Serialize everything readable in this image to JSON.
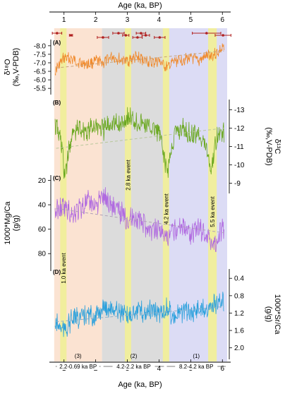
{
  "chart_data": {
    "type": "line",
    "title": "",
    "x_axis": {
      "label_top": "Age (ka, BP)",
      "label_bottom": "Age (ka, BP)",
      "ticks": [
        "1",
        "2",
        "3",
        "4",
        "5",
        "6"
      ],
      "xlim": [
        0.65,
        6.15
      ]
    },
    "panels": [
      {
        "id": "A",
        "label": "(A)",
        "ylabel_top": "δ¹⁸O",
        "ylabel_bottom": "(‰,V-PDB)",
        "ticks": [
          "-8.0",
          "-7.5",
          "-7.0",
          "-6.5",
          "-6.0",
          "-5.5"
        ],
        "ylim": [
          -8.2,
          -5.3
        ],
        "inverted": true,
        "axis_side": "left",
        "color": "#f08a2c",
        "trend_color": "#c8a27a",
        "series": [
          {
            "x": 0.75,
            "y": -6.6
          },
          {
            "x": 1.0,
            "y": -7.3
          },
          {
            "x": 1.25,
            "y": -7.2
          },
          {
            "x": 1.5,
            "y": -7.0
          },
          {
            "x": 1.75,
            "y": -6.9
          },
          {
            "x": 2.0,
            "y": -7.1
          },
          {
            "x": 2.25,
            "y": -7.0
          },
          {
            "x": 2.5,
            "y": -7.4
          },
          {
            "x": 2.75,
            "y": -7.2
          },
          {
            "x": 3.0,
            "y": -7.1
          },
          {
            "x": 3.25,
            "y": -7.3
          },
          {
            "x": 3.5,
            "y": -7.2
          },
          {
            "x": 3.75,
            "y": -7.0
          },
          {
            "x": 4.0,
            "y": -7.1
          },
          {
            "x": 4.25,
            "y": -6.7
          },
          {
            "x": 4.5,
            "y": -7.1
          },
          {
            "x": 4.75,
            "y": -7.2
          },
          {
            "x": 5.0,
            "y": -7.3
          },
          {
            "x": 5.25,
            "y": -7.1
          },
          {
            "x": 5.5,
            "y": -7.4
          },
          {
            "x": 5.75,
            "y": -7.5
          },
          {
            "x": 6.0,
            "y": -7.8
          }
        ],
        "trend": [
          {
            "x": 0.75,
            "y": -6.7
          },
          {
            "x": 6.05,
            "y": -7.7
          }
        ]
      },
      {
        "id": "B",
        "label": "(B)",
        "ylabel_top": "δ¹³C",
        "ylabel_bottom": "(‰,V-PDB)",
        "ticks": [
          "-13",
          "-12",
          "-11",
          "-10",
          "-9"
        ],
        "ylim": [
          -13.4,
          -8.6
        ],
        "inverted": true,
        "axis_side": "right",
        "color": "#6aa820",
        "trend_color": "#b8c79a",
        "series": [
          {
            "x": 0.75,
            "y": -12.1
          },
          {
            "x": 0.95,
            "y": -11.0
          },
          {
            "x": 1.0,
            "y": -9.3
          },
          {
            "x": 1.25,
            "y": -11.6
          },
          {
            "x": 1.5,
            "y": -12.0
          },
          {
            "x": 1.75,
            "y": -11.8
          },
          {
            "x": 2.0,
            "y": -12.2
          },
          {
            "x": 2.25,
            "y": -11.9
          },
          {
            "x": 2.5,
            "y": -12.3
          },
          {
            "x": 2.75,
            "y": -12.1
          },
          {
            "x": 3.0,
            "y": -12.6
          },
          {
            "x": 3.25,
            "y": -12.4
          },
          {
            "x": 3.5,
            "y": -12.2
          },
          {
            "x": 3.75,
            "y": -12.0
          },
          {
            "x": 4.0,
            "y": -11.8
          },
          {
            "x": 4.25,
            "y": -9.6
          },
          {
            "x": 4.5,
            "y": -11.7
          },
          {
            "x": 4.75,
            "y": -12.0
          },
          {
            "x": 5.0,
            "y": -11.6
          },
          {
            "x": 5.25,
            "y": -11.8
          },
          {
            "x": 5.5,
            "y": -10.9
          },
          {
            "x": 5.65,
            "y": -9.7
          },
          {
            "x": 5.8,
            "y": -11.4
          },
          {
            "x": 6.0,
            "y": -11.8
          }
        ],
        "trend": [
          {
            "x": 0.75,
            "y": -10.9
          },
          {
            "x": 6.05,
            "y": -12.0
          }
        ]
      },
      {
        "id": "C",
        "label": "(C)",
        "ylabel_top": "1000*Mg/Ca",
        "ylabel_bottom": "(g/g)",
        "ticks": [
          "20",
          "40",
          "60",
          "80"
        ],
        "ylim": [
          18,
          92
        ],
        "inverted": true,
        "axis_side": "left",
        "color": "#b06ae0",
        "trend_color": "#b0a0b8",
        "series": [
          {
            "x": 0.75,
            "y": 45
          },
          {
            "x": 1.0,
            "y": 42
          },
          {
            "x": 1.25,
            "y": 48
          },
          {
            "x": 1.5,
            "y": 43
          },
          {
            "x": 1.75,
            "y": 38
          },
          {
            "x": 2.0,
            "y": 40
          },
          {
            "x": 2.25,
            "y": 33
          },
          {
            "x": 2.5,
            "y": 40
          },
          {
            "x": 2.75,
            "y": 45
          },
          {
            "x": 3.0,
            "y": 52
          },
          {
            "x": 3.25,
            "y": 50
          },
          {
            "x": 3.5,
            "y": 55
          },
          {
            "x": 3.75,
            "y": 62
          },
          {
            "x": 4.0,
            "y": 58
          },
          {
            "x": 4.25,
            "y": 70
          },
          {
            "x": 4.5,
            "y": 60
          },
          {
            "x": 4.75,
            "y": 56
          },
          {
            "x": 5.0,
            "y": 63
          },
          {
            "x": 5.25,
            "y": 58
          },
          {
            "x": 5.5,
            "y": 65
          },
          {
            "x": 5.75,
            "y": 72
          },
          {
            "x": 6.0,
            "y": 60
          }
        ],
        "trend": [
          {
            "x": 0.75,
            "y": 43
          },
          {
            "x": 6.05,
            "y": 63
          }
        ]
      },
      {
        "id": "D",
        "label": "(D)",
        "ylabel_top": "1000*Sr/Ca",
        "ylabel_bottom": "(g/g)",
        "ticks": [
          "0.4",
          "0.8",
          "1.2",
          "1.6",
          "2.0"
        ],
        "ylim": [
          0.25,
          2.2
        ],
        "inverted": true,
        "axis_side": "right",
        "color": "#2aa0dc",
        "trend_color": "#8fb0c8",
        "series": [
          {
            "x": 0.75,
            "y": 1.45
          },
          {
            "x": 1.0,
            "y": 1.6
          },
          {
            "x": 1.25,
            "y": 1.35
          },
          {
            "x": 1.5,
            "y": 1.3
          },
          {
            "x": 1.75,
            "y": 1.25
          },
          {
            "x": 2.0,
            "y": 1.3
          },
          {
            "x": 2.25,
            "y": 1.05
          },
          {
            "x": 2.5,
            "y": 1.1
          },
          {
            "x": 2.75,
            "y": 1.15
          },
          {
            "x": 3.0,
            "y": 1.3
          },
          {
            "x": 3.25,
            "y": 1.1
          },
          {
            "x": 3.5,
            "y": 1.2
          },
          {
            "x": 3.75,
            "y": 1.15
          },
          {
            "x": 4.0,
            "y": 1.2
          },
          {
            "x": 4.25,
            "y": 1.1
          },
          {
            "x": 4.5,
            "y": 1.3
          },
          {
            "x": 4.75,
            "y": 1.15
          },
          {
            "x": 5.0,
            "y": 1.2
          },
          {
            "x": 5.25,
            "y": 1.1
          },
          {
            "x": 5.5,
            "y": 1.05
          },
          {
            "x": 5.75,
            "y": 1.0
          },
          {
            "x": 6.0,
            "y": 0.95
          }
        ],
        "trend": [
          {
            "x": 0.75,
            "y": 1.4
          },
          {
            "x": 6.05,
            "y": 1.05
          }
        ]
      }
    ],
    "background_stages": [
      {
        "x_start": 0.69,
        "x_end": 2.2,
        "color": "#fbe3d2",
        "number": "(3)",
        "range_label": "2.2-0.69 ka BP"
      },
      {
        "x_start": 2.2,
        "x_end": 4.2,
        "color": "#dcdcdc",
        "number": "(2)",
        "range_label": "4.2-2.2 ka BP"
      },
      {
        "x_start": 4.2,
        "x_end": 6.15,
        "color": "#dcdcf5",
        "number": "(1)",
        "range_label": "8.2-4.2 ka BP"
      }
    ],
    "events": [
      {
        "x_start": 0.88,
        "x_end": 1.08,
        "label": "1.0 ka event"
      },
      {
        "x_start": 2.92,
        "x_end": 3.12,
        "label": "2.8 ka event"
      },
      {
        "x_start": 4.12,
        "x_end": 4.32,
        "label": "4.2 ka event"
      },
      {
        "x_start": 5.55,
        "x_end": 5.82,
        "label": "5.5 ka event"
      }
    ],
    "dating": [
      {
        "x": 0.78,
        "err": 0.15
      },
      {
        "x": 1.22,
        "err": 0.05
      },
      {
        "x": 2.23,
        "err": 0.18
      },
      {
        "x": 2.72,
        "err": 0.18
      },
      {
        "x": 2.95,
        "err": 0.1
      },
      {
        "x": 3.32,
        "err": 0.15
      },
      {
        "x": 3.43,
        "err": 0.15
      },
      {
        "x": 3.58,
        "err": 0.12
      },
      {
        "x": 4.02,
        "err": 0.17
      },
      {
        "x": 5.5,
        "err": 0.45
      },
      {
        "x": 6.02,
        "err": 0.25
      }
    ],
    "dating_color": "#b02020",
    "event_color": "#f0ee9a"
  }
}
